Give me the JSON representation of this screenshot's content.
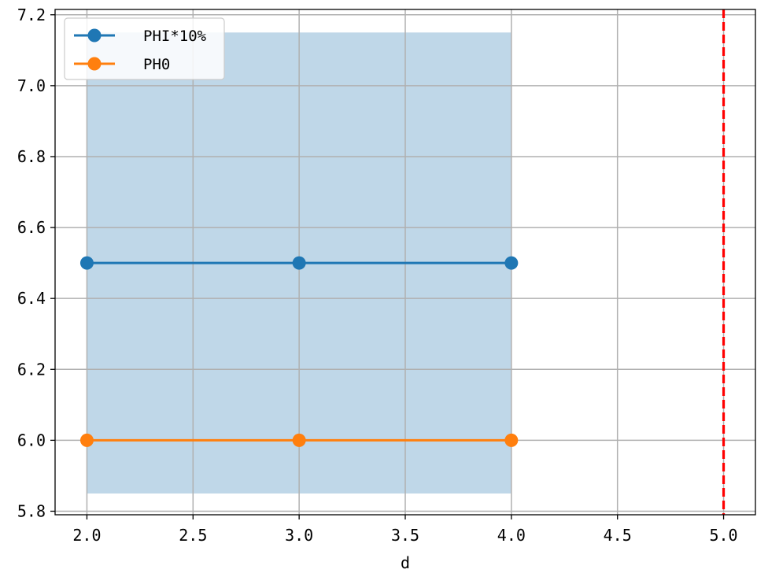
{
  "chart_data": {
    "type": "line",
    "title": "",
    "xlabel": "d",
    "ylabel": "",
    "xlim": [
      1.85,
      5.15
    ],
    "ylim": [
      5.79,
      7.215
    ],
    "x_ticks": [
      2.0,
      2.5,
      3.0,
      3.5,
      4.0,
      4.5,
      5.0
    ],
    "x_tick_labels": [
      "2.0",
      "2.5",
      "3.0",
      "3.5",
      "4.0",
      "4.5",
      "5.0"
    ],
    "y_ticks": [
      5.8,
      6.0,
      6.2,
      6.4,
      6.6,
      6.8,
      7.0,
      7.2
    ],
    "y_tick_labels": [
      "5.8",
      "6.0",
      "6.2",
      "6.4",
      "6.6",
      "6.8",
      "7.0",
      "7.2"
    ],
    "grid": true,
    "legend_position": "upper-left",
    "x": [
      2.0,
      3.0,
      4.0
    ],
    "series": [
      {
        "name": "PHI*10%",
        "values": [
          6.5,
          6.5,
          6.5
        ],
        "color": "#1f77b4",
        "marker": "circle"
      },
      {
        "name": "PH0",
        "values": [
          6.0,
          6.0,
          6.0
        ],
        "color": "#ff7f0e",
        "marker": "circle"
      }
    ],
    "shaded_band": {
      "x_range": [
        2.0,
        4.0
      ],
      "y_range": [
        5.85,
        7.15
      ],
      "color": "#bfd7e8"
    },
    "vertical_line": {
      "x": 5.0,
      "color": "#ff0000",
      "style": "dashed"
    }
  }
}
